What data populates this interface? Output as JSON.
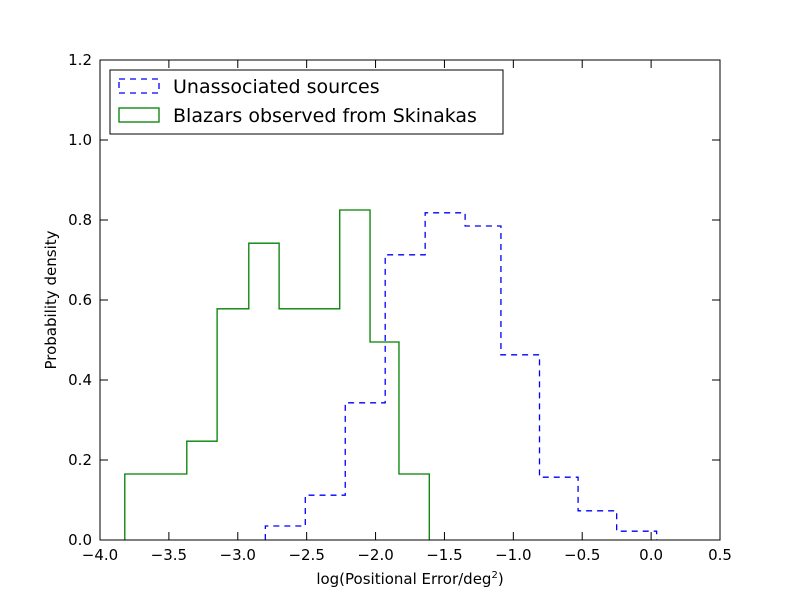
{
  "chart_data": {
    "type": "histogram",
    "title": "",
    "xlabel": "log(Positional Error/deg",
    "xlabel_superscript": "2",
    "xlabel_suffix": ")",
    "ylabel": "Probability density",
    "xlim": [
      -4.0,
      0.5
    ],
    "ylim": [
      0.0,
      1.2
    ],
    "xticks": [
      -4.0,
      -3.5,
      -3.0,
      -2.5,
      -2.0,
      -1.5,
      -1.0,
      -0.5,
      0.0,
      0.5
    ],
    "xtick_labels": [
      "−4.0",
      "−3.5",
      "−3.0",
      "−2.5",
      "−2.0",
      "−1.5",
      "−1.0",
      "−0.5",
      "0.0",
      "0.5"
    ],
    "yticks": [
      0.0,
      0.2,
      0.4,
      0.6,
      0.8,
      1.0,
      1.2
    ],
    "ytick_labels": [
      "0.0",
      "0.2",
      "0.4",
      "0.6",
      "0.8",
      "1.0",
      "1.2"
    ],
    "grid": false,
    "legend_position": "top-left",
    "series": [
      {
        "name": "Unassociated sources",
        "color": "#0000ff",
        "style": "dashed",
        "bin_edges": [
          -2.8,
          -2.51,
          -2.22,
          -1.93,
          -1.64,
          -1.35,
          -1.09,
          -0.81,
          -0.53,
          -0.25,
          0.04
        ],
        "values": [
          0.035,
          0.112,
          0.343,
          0.713,
          0.818,
          0.785,
          0.463,
          0.157,
          0.073,
          0.022
        ]
      },
      {
        "name": "Blazars observed from Skinakas",
        "color": "#008000",
        "style": "solid",
        "bin_edges": [
          -3.82,
          -3.37,
          -3.15,
          -2.92,
          -2.7,
          -2.48,
          -2.26,
          -2.04,
          -1.83,
          -1.61
        ],
        "values": [
          0.165,
          0.247,
          0.578,
          0.742,
          0.578,
          0.578,
          0.825,
          0.495,
          0.165
        ]
      }
    ]
  }
}
